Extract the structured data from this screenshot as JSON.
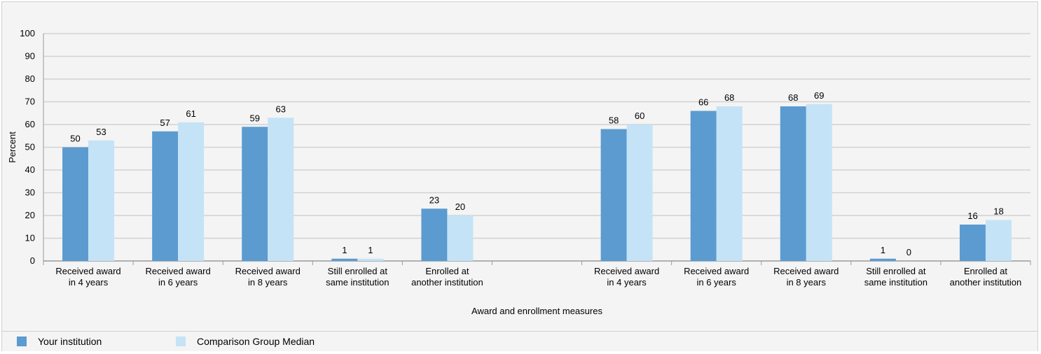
{
  "chart_data": {
    "type": "bar",
    "ylabel": "Percent",
    "xlabel": "Award and enrollment measures",
    "ylim": [
      0,
      100
    ],
    "yticks": [
      0,
      10,
      20,
      30,
      40,
      50,
      60,
      70,
      80,
      90,
      100
    ],
    "grid": true,
    "legend_position": "bottom",
    "categories": [
      [
        "Received award",
        "in 4 years"
      ],
      [
        "Received award",
        "in 6 years"
      ],
      [
        "Received award",
        "in 8 years"
      ],
      [
        "Still enrolled at",
        "same institution"
      ],
      [
        "Enrolled at",
        "another institution"
      ],
      [
        "",
        ""
      ],
      [
        "Received award",
        "in 4 years"
      ],
      [
        "Received award",
        "in 6 years"
      ],
      [
        "Received award",
        "in 8 years"
      ],
      [
        "Still enrolled at",
        "same institution"
      ],
      [
        "Enrolled at",
        "another institution"
      ]
    ],
    "series": [
      {
        "name": "Your institution",
        "color": "#5b9bd0",
        "values": [
          50,
          57,
          59,
          1,
          23,
          null,
          58,
          66,
          68,
          1,
          16
        ]
      },
      {
        "name": "Comparison Group Median",
        "color": "#c5e3f6",
        "values": [
          53,
          61,
          63,
          1,
          20,
          null,
          60,
          68,
          69,
          0,
          18
        ]
      }
    ]
  }
}
